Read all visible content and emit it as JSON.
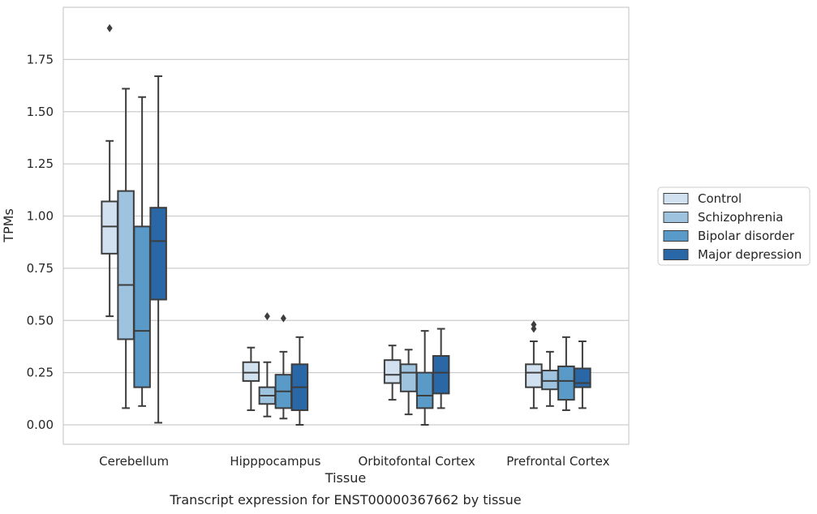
{
  "chart_data": {
    "type": "box",
    "caption": "Transcript expression for ENST00000367662 by tissue",
    "xlabel": "Tissue",
    "ylabel": "TPMs",
    "ylim": [
      -0.09,
      1.99
    ],
    "yticks": [
      "0.00",
      "0.25",
      "0.50",
      "0.75",
      "1.00",
      "1.25",
      "1.50",
      "1.75"
    ],
    "grid": true,
    "legend_position": "right",
    "categories": [
      "Cerebellum",
      "Hipppocampus",
      "Orbitofontal Cortex",
      "Prefrontal Cortex"
    ],
    "series": [
      {
        "name": "Control",
        "color": "#d1e1f0",
        "boxes": [
          {
            "whisker_low": 0.52,
            "q1": 0.82,
            "median": 0.95,
            "q3": 1.07,
            "whisker_high": 1.36,
            "outliers": [
              1.9
            ]
          },
          {
            "whisker_low": 0.07,
            "q1": 0.21,
            "median": 0.25,
            "q3": 0.3,
            "whisker_high": 0.37,
            "outliers": []
          },
          {
            "whisker_low": 0.12,
            "q1": 0.2,
            "median": 0.24,
            "q3": 0.31,
            "whisker_high": 0.38,
            "outliers": []
          },
          {
            "whisker_low": 0.08,
            "q1": 0.18,
            "median": 0.25,
            "q3": 0.29,
            "whisker_high": 0.4,
            "outliers": [
              0.46,
              0.48
            ]
          }
        ]
      },
      {
        "name": "Schizophrenia",
        "color": "#9dc3de",
        "boxes": [
          {
            "whisker_low": 0.08,
            "q1": 0.41,
            "median": 0.67,
            "q3": 1.12,
            "whisker_high": 1.61,
            "outliers": []
          },
          {
            "whisker_low": 0.04,
            "q1": 0.1,
            "median": 0.14,
            "q3": 0.18,
            "whisker_high": 0.3,
            "outliers": [
              0.52
            ]
          },
          {
            "whisker_low": 0.05,
            "q1": 0.16,
            "median": 0.25,
            "q3": 0.29,
            "whisker_high": 0.36,
            "outliers": []
          },
          {
            "whisker_low": 0.09,
            "q1": 0.17,
            "median": 0.21,
            "q3": 0.26,
            "whisker_high": 0.35,
            "outliers": []
          }
        ]
      },
      {
        "name": "Bipolar disorder",
        "color": "#5a9ac8",
        "boxes": [
          {
            "whisker_low": 0.09,
            "q1": 0.18,
            "median": 0.45,
            "q3": 0.95,
            "whisker_high": 1.57,
            "outliers": []
          },
          {
            "whisker_low": 0.03,
            "q1": 0.08,
            "median": 0.16,
            "q3": 0.24,
            "whisker_high": 0.35,
            "outliers": [
              0.51
            ]
          },
          {
            "whisker_low": 0.0,
            "q1": 0.08,
            "median": 0.14,
            "q3": 0.25,
            "whisker_high": 0.45,
            "outliers": []
          },
          {
            "whisker_low": 0.07,
            "q1": 0.12,
            "median": 0.21,
            "q3": 0.28,
            "whisker_high": 0.42,
            "outliers": []
          }
        ]
      },
      {
        "name": "Major depression",
        "color": "#2a67a6",
        "boxes": [
          {
            "whisker_low": 0.01,
            "q1": 0.6,
            "median": 0.88,
            "q3": 1.04,
            "whisker_high": 1.67,
            "outliers": []
          },
          {
            "whisker_low": 0.0,
            "q1": 0.07,
            "median": 0.18,
            "q3": 0.29,
            "whisker_high": 0.42,
            "outliers": []
          },
          {
            "whisker_low": 0.08,
            "q1": 0.15,
            "median": 0.25,
            "q3": 0.33,
            "whisker_high": 0.46,
            "outliers": []
          },
          {
            "whisker_low": 0.08,
            "q1": 0.18,
            "median": 0.2,
            "q3": 0.27,
            "whisker_high": 0.4,
            "outliers": []
          }
        ]
      }
    ]
  }
}
